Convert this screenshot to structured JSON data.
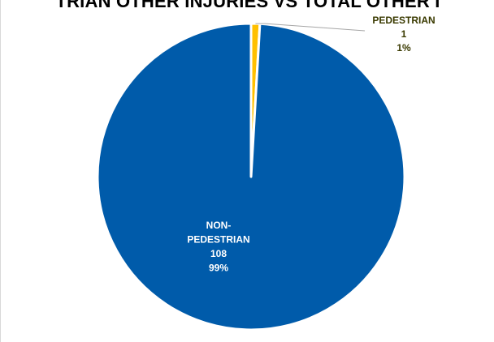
{
  "chart_data": {
    "type": "pie",
    "title": "TRIAN OTHER INJURIES VS TOTAL OTHER I",
    "categories": [
      "PEDESTRIAN",
      "NON-PEDESTRIAN"
    ],
    "values": [
      1,
      108
    ],
    "percent_labels": [
      "1%",
      "99%"
    ],
    "label_lines": [
      [
        "PEDESTRIAN",
        "1",
        "1%"
      ],
      [
        "NON-",
        "PEDESTRIAN",
        "108",
        "99%"
      ]
    ],
    "colors": [
      "#FFC000",
      "#005BAA"
    ],
    "label_colors": [
      "#3a3a00",
      "#ffffff"
    ],
    "legend": "none"
  }
}
